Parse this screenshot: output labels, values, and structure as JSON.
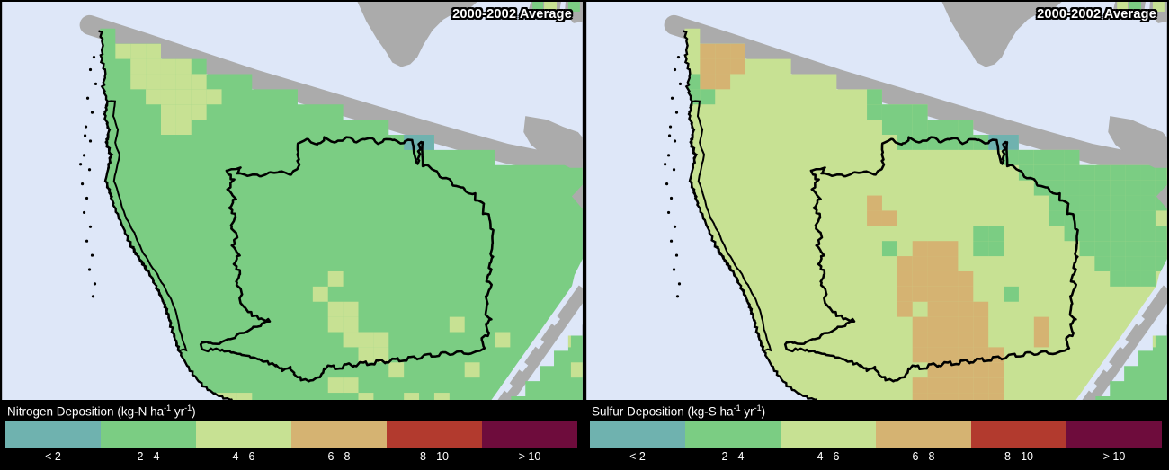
{
  "palette": {
    "lt2": "#6FB2AF",
    "c2_4": "#7BCD83",
    "c4_6": "#C7E193",
    "c6_8": "#D5B372",
    "c8_10": "#B23A2E",
    "gt10": "#6E0C3C"
  },
  "legend_classes": [
    "lt2",
    "c2_4",
    "c4_6",
    "c6_8",
    "c8_10",
    "gt10"
  ],
  "map_colors": {
    "water": "#DEE7F8",
    "land": "#ABABAB",
    "outline": "#000000",
    "label_text": "#FFFFFF"
  },
  "panels": [
    {
      "badge": "2000-2002 Average",
      "legend_title": {
        "t1": "Nitrogen Deposition (kg-N ha",
        "sup1": "-1",
        "t2": " yr",
        "sup2": "-1",
        "t3": ")"
      },
      "legend_labels": [
        "< 2",
        "2 - 4",
        "4 - 6",
        "6 - 8",
        "8 - 10",
        "> 10"
      ],
      "base_class": "c2_4",
      "corner_base_class": "c2_4",
      "island_cells": [
        "c2_4",
        "c4_6",
        "c2_4"
      ],
      "overlays": [
        [
          7,
          9,
          2,
          "c4_6"
        ],
        [
          8,
          11,
          3,
          "c4_6"
        ],
        [
          8,
          12,
          4,
          "c4_6"
        ],
        [
          9,
          13,
          5,
          "c4_6"
        ],
        [
          10,
          12,
          6,
          "c4_6"
        ],
        [
          10,
          11,
          7,
          "c4_6"
        ],
        [
          26,
          27,
          8,
          "lt2"
        ],
        [
          21,
          21,
          17,
          "c4_6"
        ],
        [
          20,
          20,
          18,
          "c4_6"
        ],
        [
          21,
          22,
          19,
          "c4_6"
        ],
        [
          21,
          22,
          20,
          "c4_6"
        ],
        [
          22,
          24,
          21,
          "c4_6"
        ],
        [
          23,
          24,
          22,
          "c4_6"
        ],
        [
          25,
          25,
          23,
          "c4_6"
        ],
        [
          29,
          29,
          20,
          "c4_6"
        ],
        [
          32,
          32,
          21,
          "c4_6"
        ],
        [
          30,
          30,
          23,
          "c4_6"
        ],
        [
          37,
          37,
          20,
          "c4_6"
        ],
        [
          13,
          15,
          25,
          "c4_6"
        ],
        [
          21,
          22,
          24,
          "c4_6"
        ],
        [
          23,
          23,
          25,
          "c4_6"
        ],
        [
          26,
          26,
          25,
          "c4_6"
        ],
        [
          28,
          28,
          25,
          "c4_6"
        ]
      ],
      "corner_overlays": [
        [
          36,
          36,
          21,
          "c4_6"
        ],
        [
          37,
          37,
          23,
          "c4_6"
        ]
      ]
    },
    {
      "badge": "2000-2002 Average",
      "legend_title": {
        "t1": "Sulfur Deposition (kg-S ha",
        "sup1": "-1",
        "t2": " yr",
        "sup2": "-1",
        "t3": ")"
      },
      "legend_labels": [
        "< 2",
        "2 - 4",
        "4 - 6",
        "6 - 8",
        "8 - 10",
        "> 10"
      ],
      "base_class": "c4_6",
      "corner_base_class": "c2_4",
      "island_cells": [
        "c4_6",
        "c2_4",
        "c4_6"
      ],
      "overlays": [
        [
          7,
          9,
          2,
          "c6_8"
        ],
        [
          7,
          9,
          3,
          "c6_8"
        ],
        [
          7,
          8,
          4,
          "c6_8"
        ],
        [
          6,
          6,
          4,
          "c2_4"
        ],
        [
          6,
          7,
          5,
          "c2_4"
        ],
        [
          18,
          19,
          4,
          "c2_4"
        ],
        [
          18,
          21,
          5,
          "c2_4"
        ],
        [
          18,
          24,
          6,
          "c2_4"
        ],
        [
          19,
          31,
          7,
          "c2_4"
        ],
        [
          20,
          25,
          8,
          "c2_4"
        ],
        [
          28,
          33,
          8,
          "c2_4"
        ],
        [
          26,
          27,
          8,
          "lt2"
        ],
        [
          27,
          37,
          9,
          "c2_4"
        ],
        [
          28,
          37,
          10,
          "c2_4"
        ],
        [
          29,
          37,
          11,
          "c2_4"
        ],
        [
          30,
          37,
          12,
          "c2_4"
        ],
        [
          30,
          36,
          13,
          "c2_4"
        ],
        [
          31,
          37,
          14,
          "c2_4"
        ],
        [
          32,
          37,
          15,
          "c2_4"
        ],
        [
          33,
          37,
          16,
          "c2_4"
        ],
        [
          34,
          36,
          17,
          "c2_4"
        ],
        [
          25,
          26,
          14,
          "c2_4"
        ],
        [
          25,
          26,
          15,
          "c2_4"
        ],
        [
          19,
          19,
          15,
          "c2_4"
        ],
        [
          27,
          27,
          18,
          "c2_4"
        ],
        [
          34,
          35,
          25,
          "c2_4"
        ],
        [
          35,
          35,
          24,
          "c2_4"
        ],
        [
          18,
          18,
          12,
          "c6_8"
        ],
        [
          18,
          19,
          13,
          "c6_8"
        ],
        [
          21,
          23,
          15,
          "c6_8"
        ],
        [
          20,
          23,
          16,
          "c6_8"
        ],
        [
          20,
          24,
          17,
          "c6_8"
        ],
        [
          20,
          24,
          18,
          "c6_8"
        ],
        [
          20,
          20,
          19,
          "c6_8"
        ],
        [
          22,
          25,
          19,
          "c6_8"
        ],
        [
          21,
          25,
          20,
          "c6_8"
        ],
        [
          21,
          25,
          21,
          "c6_8"
        ],
        [
          29,
          29,
          20,
          "c6_8"
        ],
        [
          29,
          29,
          21,
          "c6_8"
        ],
        [
          21,
          26,
          22,
          "c6_8"
        ],
        [
          22,
          26,
          23,
          "c6_8"
        ],
        [
          21,
          26,
          24,
          "c6_8"
        ],
        [
          21,
          26,
          25,
          "c6_8"
        ]
      ],
      "corner_overlays": [
        [
          36,
          36,
          21,
          "c4_6"
        ]
      ]
    }
  ]
}
